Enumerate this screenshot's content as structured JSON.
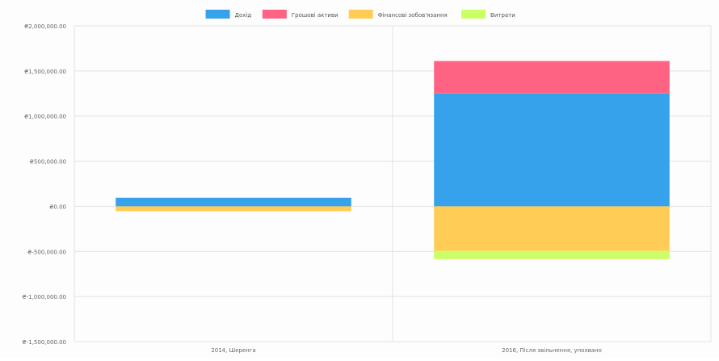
{
  "chart_data": {
    "type": "bar",
    "stacked": true,
    "categories": [
      "2014, Шеренга",
      "2016, Після звільнення, упохвано"
    ],
    "series": [
      {
        "name": "Дохід",
        "color": "#36a2eb",
        "values": [
          95000,
          1250000
        ]
      },
      {
        "name": "Грошові активи",
        "color": "#ff6384",
        "values": [
          0,
          360000
        ]
      },
      {
        "name": "Фінансові зобов'язання",
        "color": "#ffcd56",
        "values": [
          -55000,
          -495000
        ]
      },
      {
        "name": "Витрати",
        "color": "#ccff66",
        "values": [
          0,
          -90000
        ]
      }
    ],
    "ylim": [
      -1500000,
      2000000
    ],
    "yticks": [
      2000000,
      1500000,
      1000000,
      500000,
      0,
      -500000,
      -1000000,
      -1500000
    ],
    "ytick_labels": [
      "₴2,000,000.00",
      "₴1,500,000.00",
      "₴1,000,000.00",
      "₴500,000.00",
      "₴0.00",
      "₴-500,000.00",
      "₴-1,000,000.00",
      "₴-1,500,000.00"
    ],
    "grid": true,
    "legend_position": "top",
    "title": "",
    "xlabel": "",
    "ylabel": ""
  }
}
